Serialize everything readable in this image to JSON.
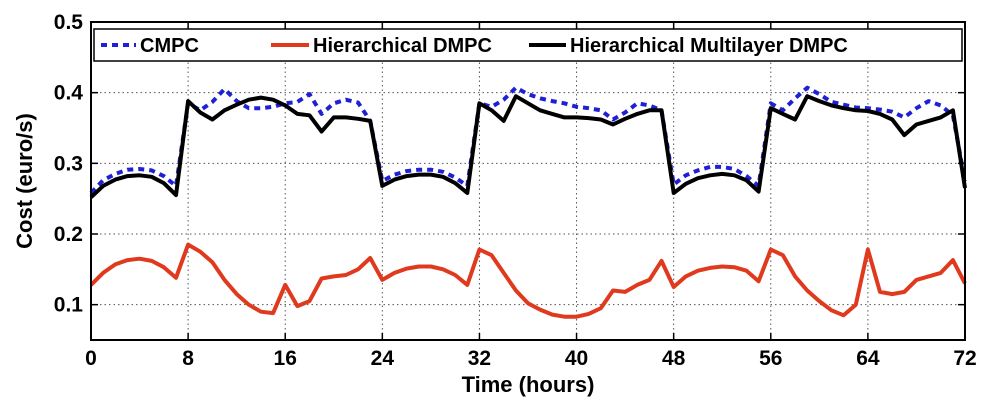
{
  "chart_data": {
    "type": "line",
    "title": "",
    "xlabel": "Time (hours)",
    "ylabel": "Cost (euro/s)",
    "xlim": [
      0,
      72
    ],
    "ylim": [
      0.05,
      0.5
    ],
    "xticks": [
      "0",
      "8",
      "16",
      "24",
      "32",
      "40",
      "48",
      "56",
      "64",
      "72"
    ],
    "yticks": [
      "0.1",
      "0.2",
      "0.3",
      "0.4",
      "0.5"
    ],
    "grid": true,
    "legend": "top",
    "series": [
      {
        "name": "CMPC",
        "color": "#1f1fd6",
        "style": "dotted",
        "x": [
          0,
          1,
          2,
          3,
          4,
          5,
          6,
          7,
          8,
          9,
          10,
          11,
          12,
          13,
          14,
          15,
          16,
          17,
          18,
          19,
          20,
          21,
          22,
          23,
          24,
          25,
          26,
          27,
          28,
          29,
          30,
          31,
          32,
          33,
          34,
          35,
          36,
          37,
          38,
          39,
          40,
          41,
          42,
          43,
          44,
          45,
          46,
          47,
          48,
          49,
          50,
          51,
          52,
          53,
          54,
          55,
          56,
          57,
          58,
          59,
          60,
          61,
          62,
          63,
          64,
          65,
          66,
          67,
          68,
          69,
          70,
          71,
          72
        ],
        "values": [
          0.258,
          0.276,
          0.285,
          0.291,
          0.292,
          0.29,
          0.282,
          0.268,
          0.385,
          0.375,
          0.387,
          0.405,
          0.388,
          0.378,
          0.378,
          0.38,
          0.385,
          0.387,
          0.398,
          0.37,
          0.385,
          0.39,
          0.386,
          0.36,
          0.275,
          0.284,
          0.289,
          0.291,
          0.291,
          0.288,
          0.28,
          0.268,
          0.385,
          0.38,
          0.39,
          0.407,
          0.398,
          0.392,
          0.388,
          0.385,
          0.38,
          0.378,
          0.375,
          0.362,
          0.372,
          0.385,
          0.382,
          0.375,
          0.27,
          0.283,
          0.29,
          0.295,
          0.295,
          0.292,
          0.282,
          0.268,
          0.385,
          0.375,
          0.392,
          0.407,
          0.398,
          0.387,
          0.383,
          0.379,
          0.378,
          0.376,
          0.373,
          0.365,
          0.378,
          0.388,
          0.382,
          0.368,
          0.275
        ]
      },
      {
        "name": "Hierarchical DMPC",
        "color": "#e03a1e",
        "style": "solid",
        "x": [
          0,
          1,
          2,
          3,
          4,
          5,
          6,
          7,
          8,
          9,
          10,
          11,
          12,
          13,
          14,
          15,
          16,
          17,
          18,
          19,
          20,
          21,
          22,
          23,
          24,
          25,
          26,
          27,
          28,
          29,
          30,
          31,
          32,
          33,
          34,
          35,
          36,
          37,
          38,
          39,
          40,
          41,
          42,
          43,
          44,
          45,
          46,
          47,
          48,
          49,
          50,
          51,
          52,
          53,
          54,
          55,
          56,
          57,
          58,
          59,
          60,
          61,
          62,
          63,
          64,
          65,
          66,
          67,
          68,
          69,
          70,
          71,
          72
        ],
        "values": [
          0.128,
          0.145,
          0.157,
          0.163,
          0.165,
          0.162,
          0.153,
          0.138,
          0.185,
          0.175,
          0.16,
          0.135,
          0.115,
          0.1,
          0.09,
          0.088,
          0.128,
          0.098,
          0.105,
          0.137,
          0.14,
          0.142,
          0.15,
          0.166,
          0.135,
          0.145,
          0.151,
          0.154,
          0.154,
          0.15,
          0.142,
          0.128,
          0.178,
          0.17,
          0.145,
          0.12,
          0.102,
          0.093,
          0.086,
          0.083,
          0.083,
          0.087,
          0.095,
          0.12,
          0.118,
          0.128,
          0.135,
          0.162,
          0.125,
          0.14,
          0.148,
          0.152,
          0.154,
          0.153,
          0.148,
          0.133,
          0.178,
          0.17,
          0.14,
          0.12,
          0.105,
          0.092,
          0.085,
          0.1,
          0.178,
          0.118,
          0.115,
          0.118,
          0.135,
          0.14,
          0.145,
          0.163,
          0.13
        ]
      },
      {
        "name": "Hierarchical Multilayer DMPC",
        "color": "#000000",
        "style": "solid",
        "x": [
          0,
          1,
          2,
          3,
          4,
          5,
          6,
          7,
          8,
          9,
          10,
          11,
          12,
          13,
          14,
          15,
          16,
          17,
          18,
          19,
          20,
          21,
          22,
          23,
          24,
          25,
          26,
          27,
          28,
          29,
          30,
          31,
          32,
          33,
          34,
          35,
          36,
          37,
          38,
          39,
          40,
          41,
          42,
          43,
          44,
          45,
          46,
          47,
          48,
          49,
          50,
          51,
          52,
          53,
          54,
          55,
          56,
          57,
          58,
          59,
          60,
          61,
          62,
          63,
          64,
          65,
          66,
          67,
          68,
          69,
          70,
          71,
          72
        ],
        "values": [
          0.252,
          0.268,
          0.277,
          0.282,
          0.283,
          0.281,
          0.272,
          0.255,
          0.388,
          0.372,
          0.362,
          0.375,
          0.383,
          0.39,
          0.393,
          0.39,
          0.382,
          0.37,
          0.368,
          0.345,
          0.365,
          0.365,
          0.363,
          0.36,
          0.268,
          0.277,
          0.282,
          0.284,
          0.284,
          0.281,
          0.272,
          0.258,
          0.385,
          0.375,
          0.36,
          0.395,
          0.385,
          0.375,
          0.37,
          0.365,
          0.365,
          0.364,
          0.362,
          0.355,
          0.363,
          0.37,
          0.375,
          0.375,
          0.258,
          0.271,
          0.279,
          0.283,
          0.285,
          0.283,
          0.276,
          0.26,
          0.378,
          0.37,
          0.362,
          0.395,
          0.388,
          0.382,
          0.378,
          0.375,
          0.374,
          0.37,
          0.362,
          0.34,
          0.355,
          0.36,
          0.365,
          0.375,
          0.265
        ]
      }
    ]
  }
}
